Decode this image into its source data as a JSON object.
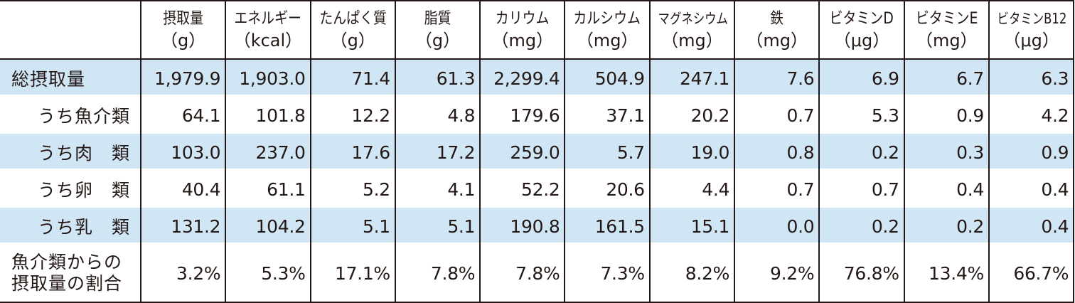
{
  "table": {
    "columns": [
      {
        "name": "摂取量",
        "unit": "（g）"
      },
      {
        "name": "エネルギー",
        "unit": "（kcal）"
      },
      {
        "name": "たんぱく質",
        "unit": "（g）"
      },
      {
        "name": "脂質",
        "unit": "（g）"
      },
      {
        "name": "カリウム",
        "unit": "（mg）"
      },
      {
        "name": "カルシウム",
        "unit": "（mg）"
      },
      {
        "name": "マグネシウム",
        "unit": "（mg）"
      },
      {
        "name": "鉄",
        "unit": "（mg）"
      },
      {
        "name": "ビタミンD",
        "unit": "（μg）"
      },
      {
        "name": "ビタミンE",
        "unit": "（mg）"
      },
      {
        "name": "ビタミンB12",
        "unit": "（μg）"
      }
    ],
    "rows": [
      {
        "label": "総摂取量",
        "values": [
          "1,979.9",
          "1,903.0",
          "71.4",
          "61.3",
          "2,299.4",
          "504.9",
          "247.1",
          "7.6",
          "6.9",
          "6.7",
          "6.3"
        ]
      },
      {
        "label": "うち魚介類",
        "values": [
          "64.1",
          "101.8",
          "12.2",
          "4.8",
          "179.6",
          "37.1",
          "20.2",
          "0.7",
          "5.3",
          "0.9",
          "4.2"
        ]
      },
      {
        "label": "うち肉　類",
        "values": [
          "103.0",
          "237.0",
          "17.6",
          "17.2",
          "259.0",
          "5.7",
          "19.0",
          "0.8",
          "0.2",
          "0.3",
          "0.9"
        ]
      },
      {
        "label": "うち卵　類",
        "values": [
          "40.4",
          "61.1",
          "5.2",
          "4.1",
          "52.2",
          "20.6",
          "4.4",
          "0.7",
          "0.7",
          "0.4",
          "0.4"
        ]
      },
      {
        "label": "うち乳　類",
        "values": [
          "131.2",
          "104.2",
          "5.1",
          "5.1",
          "190.8",
          "161.5",
          "15.1",
          "0.0",
          "0.2",
          "0.2",
          "0.4"
        ]
      },
      {
        "label_line1": "魚介類からの",
        "label_line2": "摂取量の割合",
        "values": [
          "3.2%",
          "5.3%",
          "17.1%",
          "7.8%",
          "7.8%",
          "7.3%",
          "8.2%",
          "9.2%",
          "76.8%",
          "13.4%",
          "66.7%"
        ]
      }
    ]
  },
  "colors": {
    "row_shade": "#d0e6f5",
    "border": "#231815",
    "text": "#231815"
  }
}
